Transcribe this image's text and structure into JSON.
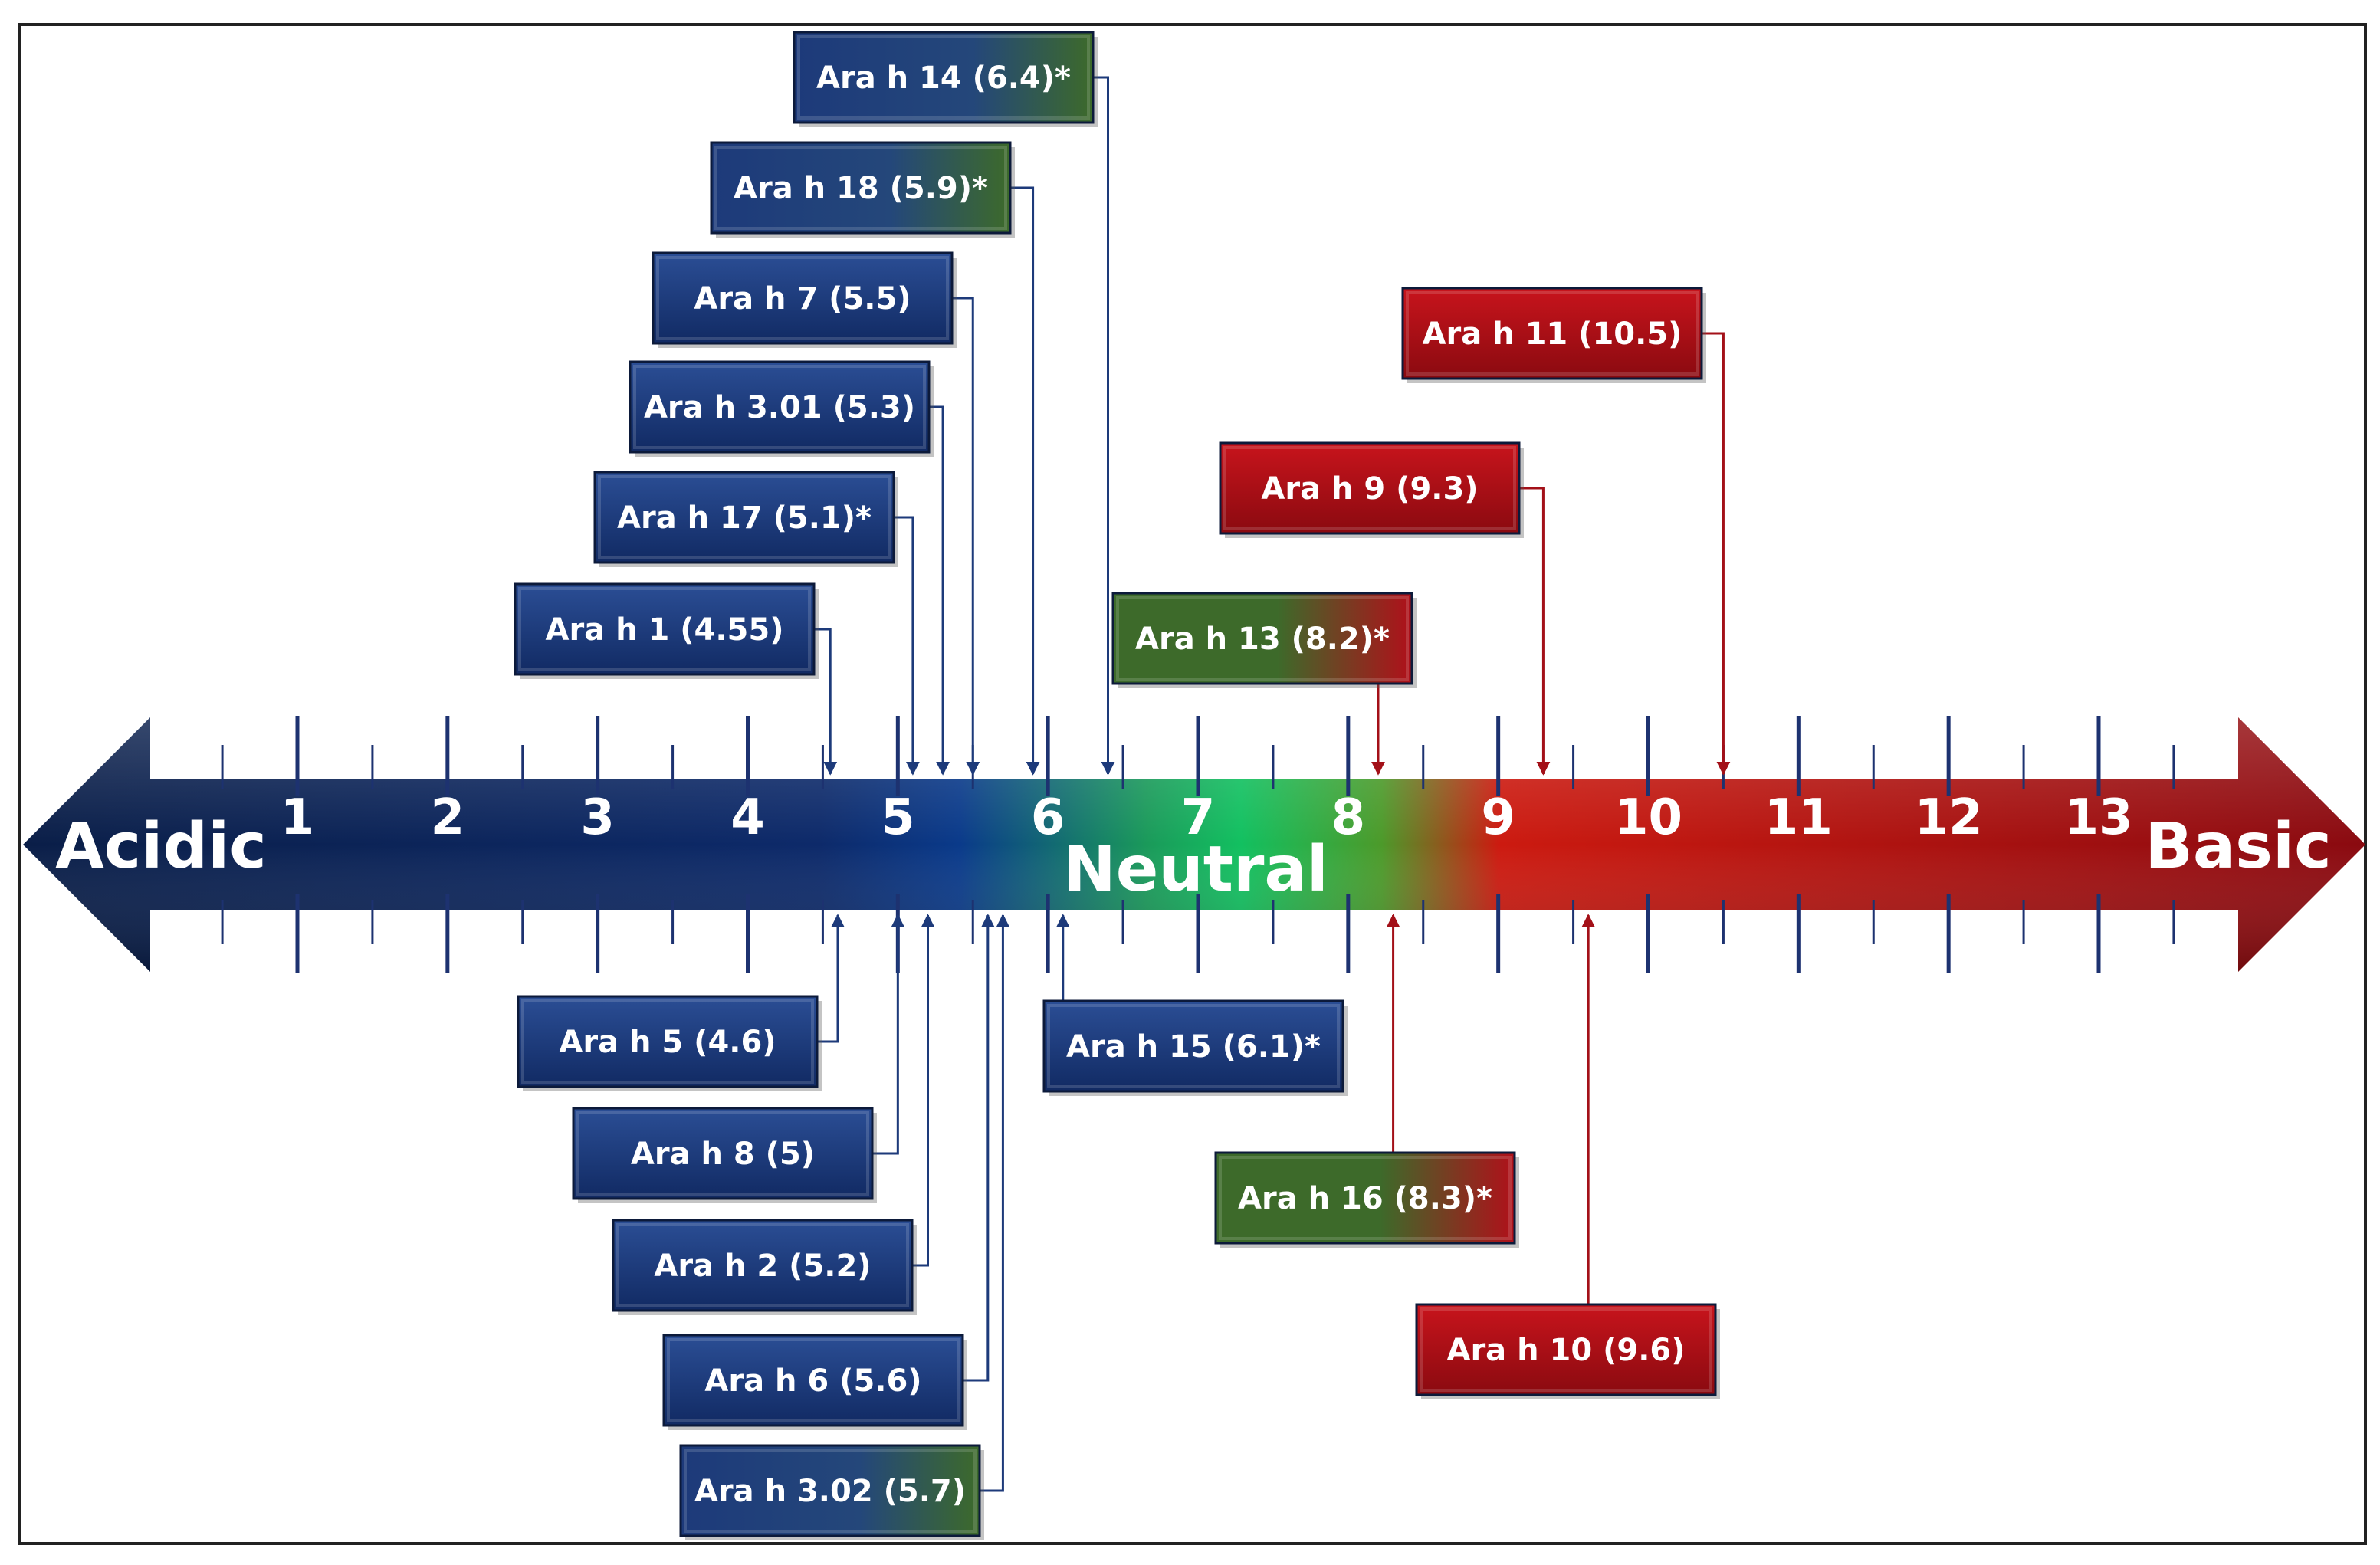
{
  "scale": {
    "start_label": "Acidic",
    "end_label": "Basic",
    "middle_label": "Neutral",
    "numbers": [
      "1",
      "2",
      "3",
      "4",
      "5",
      "6",
      "7",
      "8",
      "9",
      "10",
      "11",
      "12",
      "13"
    ],
    "min": 1,
    "max": 13
  },
  "colors": {
    "acidic": "#0d2a5e",
    "neutral": "#0fa34a",
    "basic": "#b0101a",
    "blue_box": "#1d3a7a",
    "green_box": "#3d6a2a",
    "red_box": "#a31018"
  },
  "allergens": [
    {
      "label": "Ara h 14 (6.4)*",
      "pi": 6.4,
      "side": "top",
      "color": "blue-green"
    },
    {
      "label": "Ara h 18 (5.9)*",
      "pi": 5.9,
      "side": "top",
      "color": "blue-green"
    },
    {
      "label": "Ara h 7 (5.5)",
      "pi": 5.5,
      "side": "top",
      "color": "blue"
    },
    {
      "label": "Ara h 3.01 (5.3)",
      "pi": 5.3,
      "side": "top",
      "color": "blue"
    },
    {
      "label": "Ara h 17 (5.1)*",
      "pi": 5.1,
      "side": "top",
      "color": "blue"
    },
    {
      "label": "Ara h 1 (4.55)",
      "pi": 4.55,
      "side": "top",
      "color": "blue"
    },
    {
      "label": "Ara h 11 (10.5)",
      "pi": 10.5,
      "side": "top",
      "color": "red"
    },
    {
      "label": "Ara h 9 (9.3)",
      "pi": 9.3,
      "side": "top",
      "color": "red"
    },
    {
      "label": "Ara h 13 (8.2)*",
      "pi": 8.2,
      "side": "top",
      "color": "green-red"
    },
    {
      "label": "Ara h 5 (4.6)",
      "pi": 4.6,
      "side": "bottom",
      "color": "blue"
    },
    {
      "label": "Ara h 8 (5)",
      "pi": 5.0,
      "side": "bottom",
      "color": "blue"
    },
    {
      "label": "Ara h 2 (5.2)",
      "pi": 5.2,
      "side": "bottom",
      "color": "blue"
    },
    {
      "label": "Ara h 6 (5.6)",
      "pi": 5.6,
      "side": "bottom",
      "color": "blue"
    },
    {
      "label": "Ara h 3.02 (5.7)",
      "pi": 5.7,
      "side": "bottom",
      "color": "blue-green"
    },
    {
      "label": "Ara h 15 (6.1)*",
      "pi": 6.1,
      "side": "bottom",
      "color": "blue"
    },
    {
      "label": "Ara h 16 (8.3)*",
      "pi": 8.3,
      "side": "bottom",
      "color": "green-red"
    },
    {
      "label": "Ara h 10 (9.6)",
      "pi": 9.6,
      "side": "bottom",
      "color": "red"
    }
  ]
}
